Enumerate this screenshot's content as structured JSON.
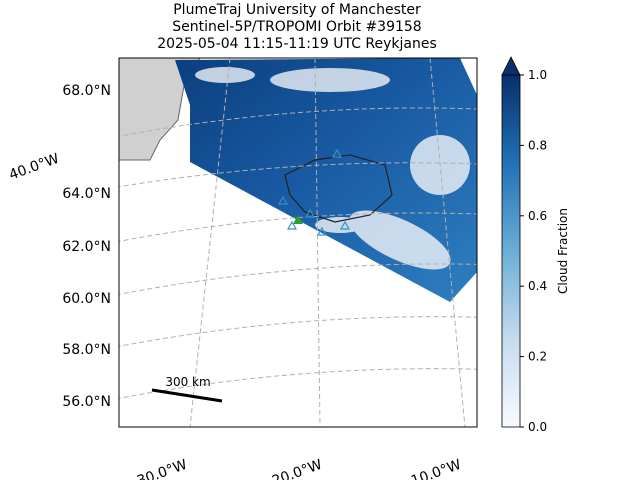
{
  "title": [
    "PlumeTraj    University of Manchester",
    "Sentinel-5P/TROPOMI Orbit #39158",
    "2025-05-04   11:15-11:19 UTC   Reykjanes"
  ],
  "lat_labels": [
    "68.0°N",
    "64.0°N",
    "62.0°N",
    "60.0°N",
    "58.0°N",
    "56.0°N"
  ],
  "lon_labels": [
    "40.0°W",
    "30.0°W",
    "20.0°W",
    "10.0°W"
  ],
  "scale_bar": "300 km",
  "colorbar": {
    "label": "Cloud Fraction",
    "lim": [
      0,
      1
    ],
    "ticks": [
      {
        "value": 0,
        "label": "0.0"
      },
      0.2,
      0.4,
      0.6,
      0.8,
      {
        "value": 1,
        "label": "1.0"
      }
    ],
    "colors": [
      "#f7fbff",
      "#c6dbef",
      "#6baed6",
      "#2171b5",
      "#08306b"
    ]
  }
}
